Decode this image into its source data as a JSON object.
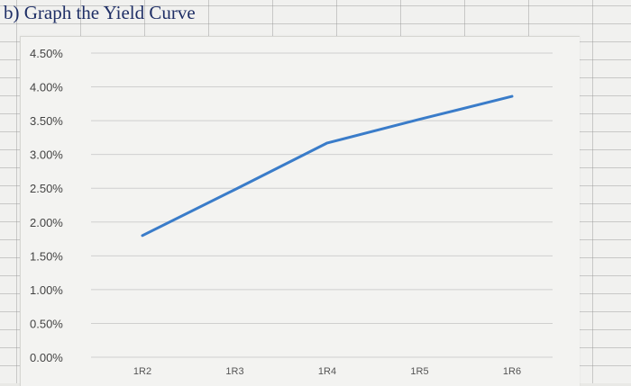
{
  "sheet": {
    "title": "b) Graph the Yield Curve"
  },
  "chart_data": {
    "type": "line",
    "title": "",
    "xlabel": "",
    "ylabel": "",
    "categories": [
      "1R2",
      "1R3",
      "1R4",
      "1R5",
      "1R6"
    ],
    "series": [
      {
        "values": [
          0.018,
          0.0248,
          0.0317,
          0.0352,
          0.0386
        ],
        "color": "#3a7cc9"
      }
    ],
    "ylim": [
      0,
      0.045
    ],
    "yticks": [
      "0.00%",
      "0.50%",
      "1.00%",
      "1.50%",
      "2.00%",
      "2.50%",
      "3.00%",
      "3.50%",
      "4.00%",
      "4.50%"
    ],
    "grid": true,
    "legend": "none"
  }
}
